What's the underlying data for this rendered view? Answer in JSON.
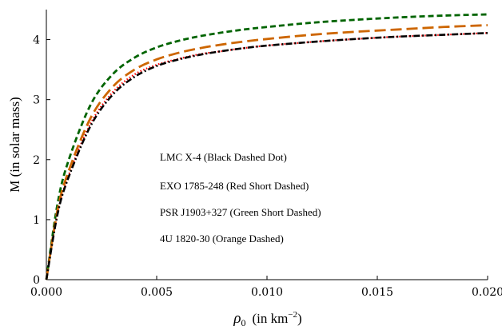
{
  "chart_data": {
    "type": "line",
    "xlabel_symbol": "ρ",
    "xlabel_sub": "0",
    "xlabel_text": "(in  km",
    "xlabel_sup": "−2",
    "xlabel_close": ")",
    "ylabel": "M  (in solar mass)",
    "xlim": [
      0.0,
      0.02
    ],
    "ylim": [
      0,
      4.5
    ],
    "xticks": [
      "0.000",
      "0.005",
      "0.010",
      "0.015",
      "0.020"
    ],
    "xtick_values": [
      0.0,
      0.005,
      0.01,
      0.015,
      0.02
    ],
    "yticks": [
      "0",
      "1",
      "2",
      "3",
      "4"
    ],
    "ytick_values": [
      0,
      1,
      2,
      3,
      4
    ],
    "grid": false,
    "annotations": [
      "LMC X-4  (Black Dashed  Dot)",
      "EXO 1785-248 (Red Short Dashed)",
      "PSR J1903+327 (Green Short Dashed)",
      "4U 1820-30  (Orange  Dashed)"
    ],
    "series": [
      {
        "color": "#ff0000",
        "dash": "dotted",
        "x": [
          0.0,
          0.0005,
          0.001,
          0.002,
          0.003,
          0.004,
          0.005,
          0.006,
          0.007,
          0.008,
          0.009,
          0.01,
          0.012,
          0.014,
          0.016,
          0.018,
          0.02
        ],
        "y": [
          0.0,
          1.1,
          1.73,
          2.6,
          3.12,
          3.42,
          3.58,
          3.68,
          3.76,
          3.81,
          3.86,
          3.9,
          3.96,
          4.01,
          4.05,
          4.08,
          4.11
        ]
      },
      {
        "color": "#006400",
        "dash": "short-dashed",
        "x": [
          0.0,
          0.0005,
          0.001,
          0.002,
          0.003,
          0.004,
          0.005,
          0.006,
          0.007,
          0.008,
          0.009,
          0.01,
          0.012,
          0.014,
          0.016,
          0.018,
          0.02
        ],
        "y": [
          0.0,
          1.25,
          1.98,
          2.91,
          3.42,
          3.7,
          3.87,
          3.98,
          4.06,
          4.12,
          4.17,
          4.21,
          4.28,
          4.33,
          4.37,
          4.4,
          4.42
        ]
      },
      {
        "color": "#cd6600",
        "dash": "dashed",
        "x": [
          0.0,
          0.0005,
          0.001,
          0.002,
          0.003,
          0.004,
          0.005,
          0.006,
          0.007,
          0.008,
          0.009,
          0.01,
          0.012,
          0.014,
          0.016,
          0.018,
          0.02
        ],
        "y": [
          0.0,
          1.15,
          1.8,
          2.69,
          3.21,
          3.5,
          3.67,
          3.78,
          3.86,
          3.92,
          3.97,
          4.01,
          4.08,
          4.13,
          4.17,
          4.21,
          4.24
        ]
      },
      {
        "color": "#000000",
        "dash": "dash-dot",
        "x": [
          0.0,
          0.0005,
          0.001,
          0.002,
          0.003,
          0.004,
          0.005,
          0.006,
          0.007,
          0.008,
          0.009,
          0.01,
          0.012,
          0.014,
          0.016,
          0.018,
          0.02
        ],
        "y": [
          0.0,
          1.08,
          1.7,
          2.56,
          3.08,
          3.38,
          3.56,
          3.67,
          3.75,
          3.81,
          3.86,
          3.9,
          3.96,
          4.01,
          4.05,
          4.08,
          4.11
        ]
      }
    ]
  }
}
